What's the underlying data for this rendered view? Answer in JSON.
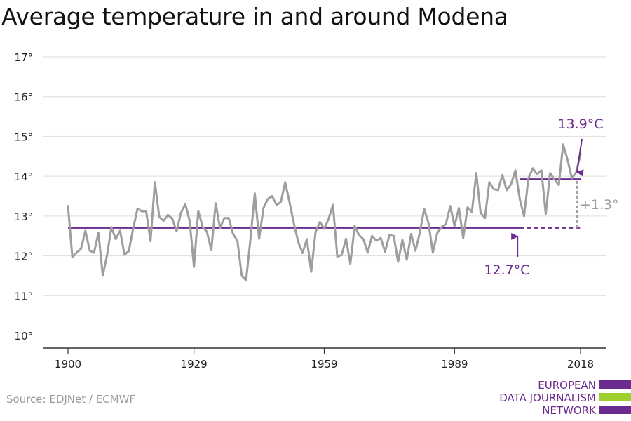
{
  "title": "Average temperature in and around Modena",
  "source": "Source: EDJNet / ECMWF",
  "logo": {
    "lines": [
      "EUROPEAN",
      "DATA JOURNALISM",
      "NETWORK"
    ],
    "color": "#6b2c8f",
    "accent": "#9ed02f"
  },
  "colors": {
    "series": "#9e9e9e",
    "average": "#6b2c8f",
    "delta": "#9e9e9e",
    "grid": "#dddddd",
    "axis": "#333333"
  },
  "chart_data": {
    "type": "line",
    "title": "Average temperature in and around Modena",
    "xlabel": "",
    "ylabel": "",
    "xlim": [
      1900,
      2018
    ],
    "ylim": [
      10,
      17
    ],
    "xticks": [
      1900,
      1929,
      1959,
      1989,
      2018
    ],
    "xtick_labels": [
      "1900",
      "1929",
      "1959",
      "1989",
      "2018"
    ],
    "yticks": [
      10,
      11,
      12,
      13,
      14,
      15,
      16,
      17
    ],
    "ytick_labels": [
      "10°",
      "11°",
      "12°",
      "13°",
      "14°",
      "15°",
      "16°",
      "17°"
    ],
    "grid": true,
    "series": [
      {
        "x": [
          1900,
          1901,
          1902,
          1903,
          1904,
          1905,
          1906,
          1907,
          1908,
          1909,
          1910,
          1911,
          1912,
          1913,
          1914,
          1915,
          1916,
          1917,
          1918,
          1919,
          1920,
          1921,
          1922,
          1923,
          1924,
          1925,
          1926,
          1927,
          1928,
          1929,
          1930,
          1931,
          1932,
          1933,
          1934,
          1935,
          1936,
          1937,
          1938,
          1939,
          1940,
          1941,
          1942,
          1943,
          1944,
          1945,
          1946,
          1947,
          1948,
          1949,
          1950,
          1951,
          1952,
          1953,
          1954,
          1955,
          1956,
          1957,
          1958,
          1959,
          1960,
          1961,
          1962,
          1963,
          1964,
          1965,
          1966,
          1967,
          1968,
          1969,
          1970,
          1971,
          1972,
          1973,
          1974,
          1975,
          1976,
          1977,
          1978,
          1979,
          1980,
          1981,
          1982,
          1983,
          1984,
          1985,
          1986,
          1987,
          1988,
          1989,
          1990,
          1991,
          1992,
          1993,
          1994,
          1995,
          1996,
          1997,
          1998,
          1999,
          2000,
          2001,
          2002,
          2003,
          2004,
          2005,
          2006,
          2007,
          2008,
          2009,
          2010,
          2011,
          2012,
          2013,
          2014,
          2015,
          2016,
          2017,
          2018
        ],
        "values": [
          13.25,
          11.97,
          12.08,
          12.18,
          12.63,
          12.13,
          12.08,
          12.58,
          11.5,
          12.03,
          12.72,
          12.42,
          12.63,
          12.03,
          12.12,
          12.68,
          13.18,
          13.12,
          13.12,
          12.37,
          13.85,
          12.98,
          12.88,
          13.03,
          12.93,
          12.62,
          13.08,
          13.3,
          12.88,
          11.72,
          13.13,
          12.73,
          12.6,
          12.14,
          13.32,
          12.7,
          12.95,
          12.95,
          12.55,
          12.38,
          11.5,
          11.38,
          12.42,
          13.57,
          12.43,
          13.2,
          13.43,
          13.5,
          13.28,
          13.35,
          13.85,
          13.35,
          12.82,
          12.35,
          12.07,
          12.42,
          11.6,
          12.6,
          12.85,
          12.68,
          12.93,
          13.28,
          11.98,
          12.02,
          12.43,
          11.8,
          12.75,
          12.52,
          12.42,
          12.08,
          12.5,
          12.38,
          12.45,
          12.1,
          12.52,
          12.5,
          11.85,
          12.4,
          11.9,
          12.55,
          12.13,
          12.58,
          13.18,
          12.82,
          12.08,
          12.57,
          12.72,
          12.8,
          13.25,
          12.75,
          13.2,
          12.45,
          13.22,
          13.1,
          14.08,
          13.08,
          12.95,
          13.85,
          13.68,
          13.65,
          14.03,
          13.65,
          13.8,
          14.15,
          13.43,
          13.0,
          13.95,
          14.2,
          14.05,
          14.15,
          13.05,
          14.08,
          13.92,
          13.78,
          14.8,
          14.42,
          13.95,
          14.1,
          14.55
        ]
      }
    ],
    "reference_lines": [
      {
        "label": "12.7°C",
        "value": 12.7,
        "x_start": 1900,
        "x_end": 2004,
        "dashed_to": 2018
      },
      {
        "label": "13.9°C",
        "value": 13.93,
        "x_start": 2004,
        "x_end": 2018
      }
    ],
    "annotations": [
      {
        "text": "+1.3°",
        "x": 2018,
        "y_from": 12.7,
        "y_to": 13.93
      }
    ]
  }
}
